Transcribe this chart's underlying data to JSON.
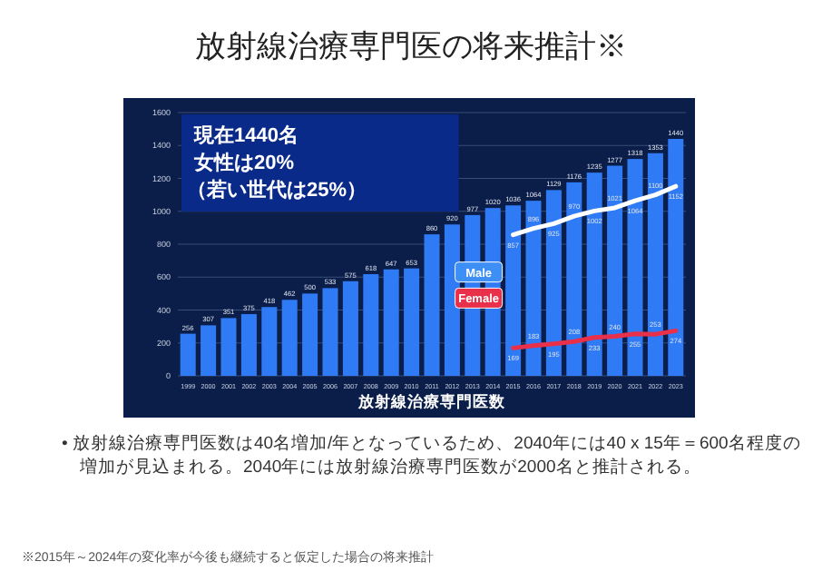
{
  "chart_data": {
    "type": "bar",
    "title": "放射線治療専門医の将来推計※",
    "xlabel": "放射線治療専門医数",
    "categories": [
      "1999",
      "2000",
      "2001",
      "2002",
      "2003",
      "2004",
      "2005",
      "2006",
      "2007",
      "2008",
      "2009",
      "2010",
      "2011",
      "2012",
      "2013",
      "2014",
      "2015",
      "2016",
      "2017",
      "2018",
      "2019",
      "2020",
      "2021",
      "2022",
      "2023"
    ],
    "series": [
      {
        "color": "#2f7bf5",
        "values": [
          256,
          307,
          351,
          375,
          418,
          462,
          500,
          533,
          575,
          618,
          647,
          653,
          860,
          920,
          977,
          1020,
          1036,
          1064,
          1129,
          1176,
          1235,
          1277,
          1318,
          1353,
          1440
        ]
      },
      {
        "type": "line",
        "name": "Male",
        "color": "#ffffff",
        "values": [
          null,
          null,
          null,
          null,
          null,
          null,
          null,
          null,
          null,
          null,
          null,
          null,
          null,
          null,
          null,
          null,
          857,
          896,
          925,
          970,
          1002,
          1021,
          1064,
          1100,
          1152
        ]
      },
      {
        "type": "line",
        "name": "Female",
        "color": "#e8304a",
        "values": [
          null,
          null,
          null,
          null,
          null,
          null,
          null,
          null,
          null,
          null,
          null,
          null,
          null,
          null,
          null,
          null,
          169,
          183,
          195,
          208,
          233,
          240,
          255,
          253,
          274
        ]
      }
    ],
    "ylim": [
      0,
      1600
    ],
    "yticks": [
      0,
      200,
      400,
      600,
      800,
      1000,
      1200,
      1400,
      1600
    ],
    "grid": "y",
    "data_labels": true,
    "annotations": [
      "現在1440名",
      "女性は20%",
      "（若い世代は25%）",
      "• 放射線治療専門医数は40名増加/年となっているため、2040年には40 x 15年＝600名程度の増加が見込まれる。2040年には放射線治療専門医数が2000名と推計される。",
      "※2015年～2024年の変化率が今後も継続すると仮定した場合の将来推計"
    ]
  }
}
